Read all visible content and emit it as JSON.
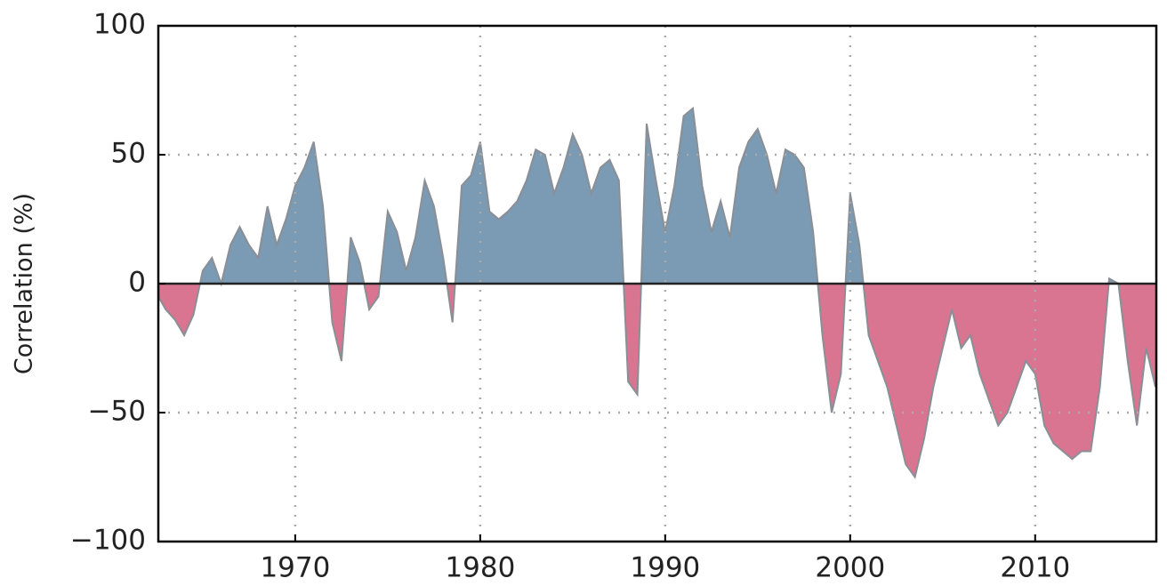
{
  "chart_data": {
    "type": "area",
    "ylabel": "Correlation (%)",
    "x": [
      1962.6,
      1963,
      1963.5,
      1964,
      1964.5,
      1965,
      1965.5,
      1966,
      1966.5,
      1967,
      1967.5,
      1968,
      1968.5,
      1969,
      1969.5,
      1970,
      1970.5,
      1971,
      1971.5,
      1972,
      1972.5,
      1973,
      1973.5,
      1974,
      1974.5,
      1975,
      1975.5,
      1976,
      1976.5,
      1977,
      1977.5,
      1978,
      1978.5,
      1979,
      1979.5,
      1980,
      1980.5,
      1981,
      1981.5,
      1982,
      1982.5,
      1983,
      1983.5,
      1984,
      1984.5,
      1985,
      1985.5,
      1986,
      1986.5,
      1987,
      1987.5,
      1988,
      1988.5,
      1989,
      1989.5,
      1990,
      1990.5,
      1991,
      1991.5,
      1992,
      1992.5,
      1993,
      1993.5,
      1994,
      1994.5,
      1995,
      1995.5,
      1996,
      1996.5,
      1997,
      1997.5,
      1998,
      1998.5,
      1999,
      1999.5,
      2000,
      2000.5,
      2001,
      2001.5,
      2002,
      2002.5,
      2003,
      2003.5,
      2004,
      2004.5,
      2005,
      2005.5,
      2006,
      2006.5,
      2007,
      2007.5,
      2008,
      2008.5,
      2009,
      2009.5,
      2010,
      2010.5,
      2011,
      2011.5,
      2012,
      2012.5,
      2013,
      2013.5,
      2014,
      2014.5,
      2015,
      2015.5,
      2016,
      2016.5
    ],
    "values": [
      -5,
      -10,
      -14,
      -20,
      -12,
      5,
      10,
      0,
      15,
      22,
      15,
      10,
      30,
      15,
      25,
      38,
      45,
      55,
      30,
      -15,
      -30,
      18,
      8,
      -10,
      -5,
      28,
      20,
      5,
      18,
      40,
      30,
      10,
      -15,
      38,
      42,
      55,
      28,
      25,
      28,
      32,
      40,
      52,
      50,
      35,
      45,
      58,
      50,
      35,
      45,
      48,
      40,
      -38,
      -43,
      62,
      40,
      20,
      38,
      65,
      68,
      38,
      20,
      32,
      18,
      45,
      55,
      60,
      50,
      35,
      52,
      50,
      45,
      20,
      -20,
      -50,
      -35,
      35,
      15,
      -20,
      -30,
      -40,
      -55,
      -70,
      -75,
      -60,
      -40,
      -25,
      -10,
      -25,
      -20,
      -35,
      -45,
      -55,
      -50,
      -40,
      -30,
      -35,
      -55,
      -62,
      -65,
      -68,
      -65,
      -65,
      -40,
      2,
      0,
      -30,
      -55,
      -25,
      -40
    ],
    "positive_color": "#7b9ab3",
    "negative_color": "#d97591",
    "line_color": "#8a8f96",
    "xlim": [
      1962.6,
      2016.55
    ],
    "ylim": [
      -100,
      100
    ],
    "xticks": [
      1970,
      1980,
      1990,
      2000,
      2010
    ],
    "yticks": [
      {
        "value": -100,
        "label": "−100"
      },
      {
        "value": -50,
        "label": "−50"
      },
      0,
      50,
      100
    ],
    "grid": true
  }
}
